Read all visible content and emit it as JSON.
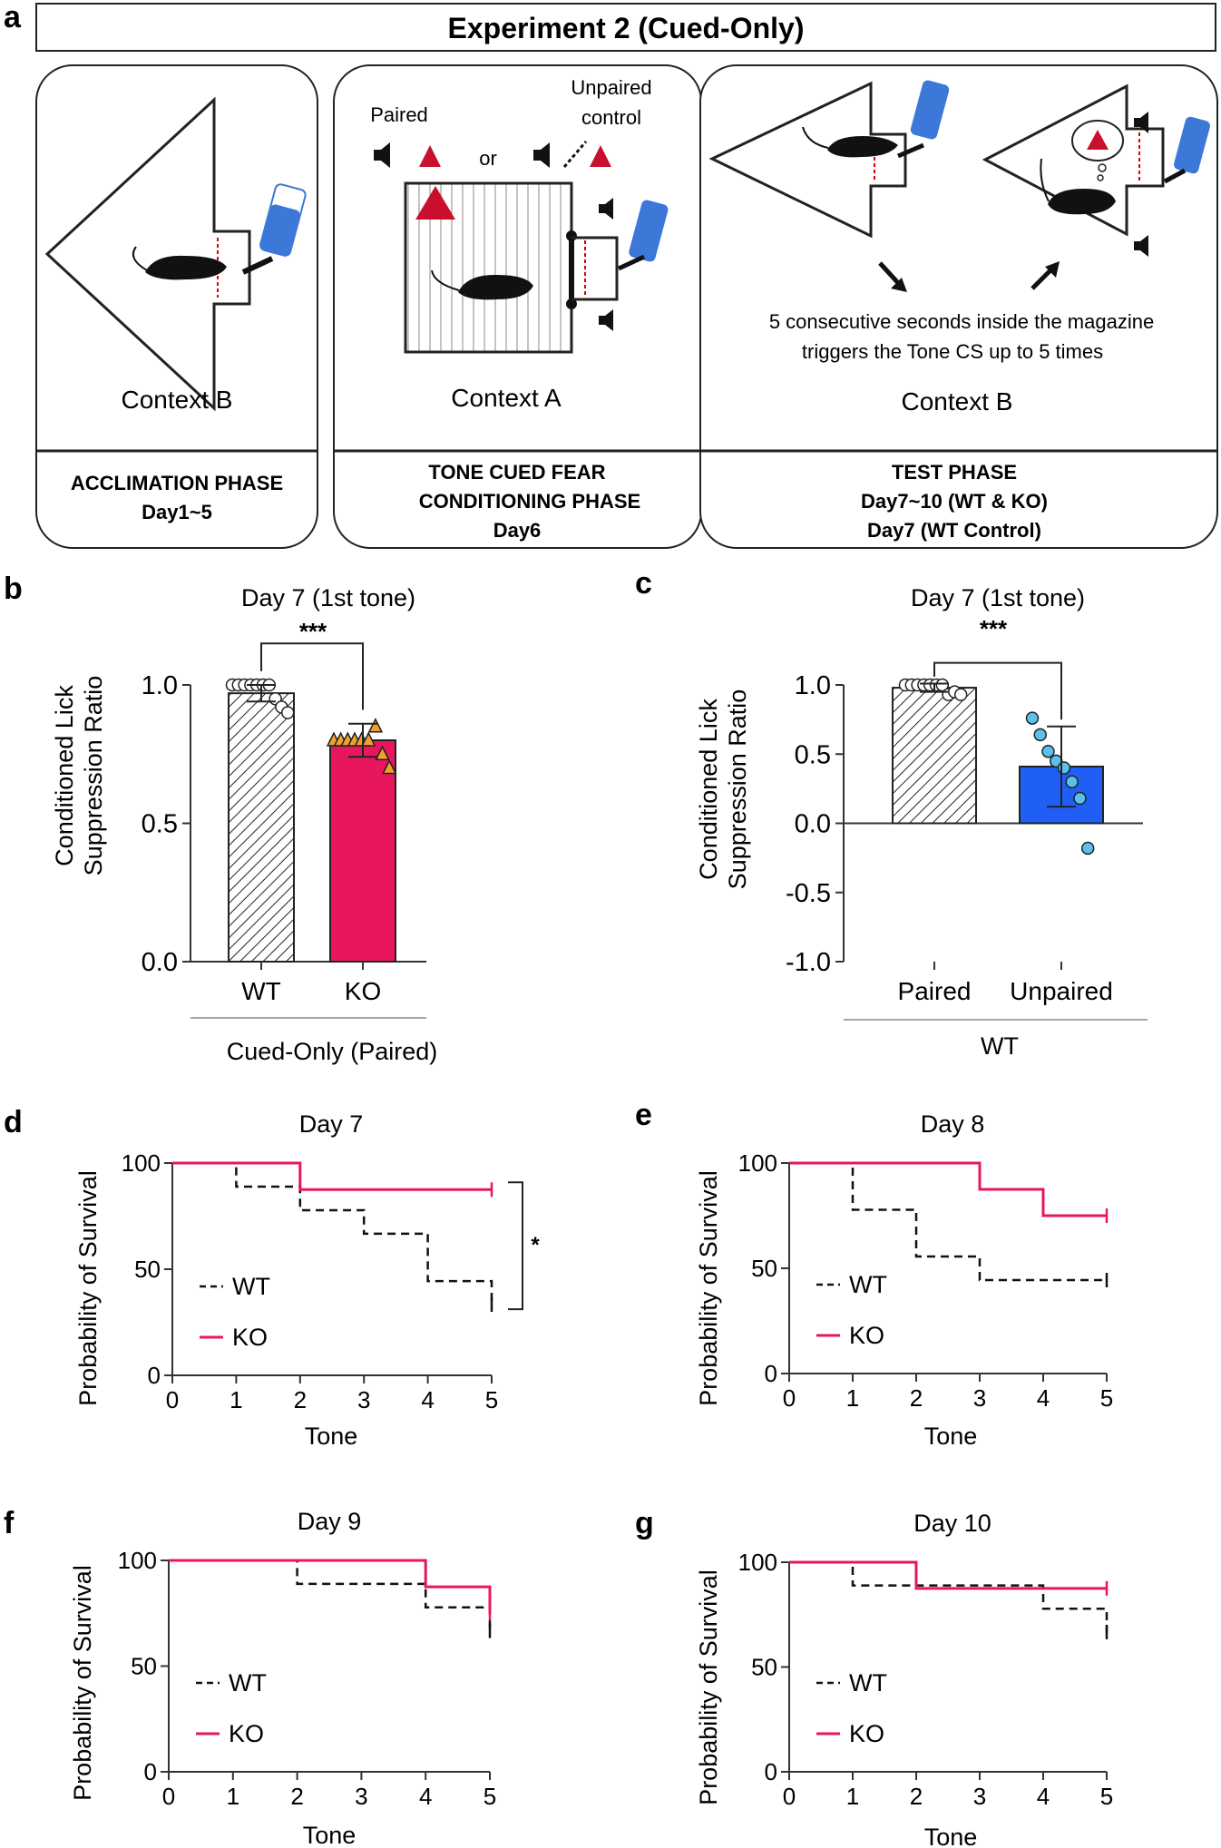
{
  "panel_letters": {
    "a": "a",
    "b": "b",
    "c": "c",
    "d": "d",
    "e": "e",
    "f": "f",
    "g": "g"
  },
  "colors": {
    "wt": "#111111",
    "ko": "#e8175d",
    "unpaired": "#1f5ff5",
    "unpaired_dot": "#5bc0eb",
    "triangle": "#f0a030",
    "shock": "#c8102e",
    "water": "#3b78d8"
  },
  "schematic": {
    "title": "Experiment 2 (Cued-Only)",
    "box1": {
      "context": "Context B",
      "phase_line1": "ACCLIMATION PHASE",
      "phase_line2": "Day1~5"
    },
    "box2": {
      "paired": "Paired",
      "unpaired_line1": "Unpaired",
      "unpaired_line2": "control",
      "or": "or",
      "context": "Context A",
      "phase_line1": "TONE CUED FEAR",
      "phase_line2": "CONDITIONING PHASE",
      "phase_line3": "Day6"
    },
    "box3": {
      "note_line1": "5 consecutive seconds inside the magazine",
      "note_line2": "triggers the Tone CS up to 5 times",
      "context": "Context B",
      "phase_line1": "TEST PHASE",
      "phase_line2": "Day7~10 (WT & KO)",
      "phase_line3": "Day7 (WT Control)"
    }
  },
  "chart_data": [
    {
      "id": "b",
      "type": "bar",
      "title": "Day 7 (1st tone)",
      "ylabel_line1": "Conditioned Lick",
      "ylabel_line2": "Suppression Ratio",
      "group_label": "Cued-Only (Paired)",
      "significance": "***",
      "ylim": [
        0.0,
        1.0
      ],
      "yticks": [
        "0.0",
        "0.5",
        "1.0"
      ],
      "categories": [
        "WT",
        "KO"
      ],
      "values": [
        0.97,
        0.8
      ],
      "error": [
        0.03,
        0.06
      ],
      "points": [
        [
          1.0,
          1.0,
          1.0,
          1.0,
          1.0,
          1.0,
          1.0,
          0.95,
          0.92,
          0.9
        ],
        [
          0.8,
          0.8,
          0.8,
          0.8,
          0.8,
          0.8,
          0.85,
          0.75,
          0.7
        ]
      ]
    },
    {
      "id": "c",
      "type": "bar",
      "title": "Day 7 (1st tone)",
      "ylabel_line1": "Conditioned Lick",
      "ylabel_line2": "Suppression Ratio",
      "group_label": "WT",
      "significance": "***",
      "ylim": [
        -1.0,
        1.0
      ],
      "yticks": [
        "-1.0",
        "-0.5",
        "0.0",
        "0.5",
        "1.0"
      ],
      "categories": [
        "Paired",
        "Unpaired"
      ],
      "values": [
        0.98,
        0.41
      ],
      "error": [
        0.03,
        0.29
      ],
      "points": [
        [
          1.0,
          1.0,
          1.0,
          1.0,
          1.0,
          1.0,
          1.0,
          0.93,
          0.95,
          0.93
        ],
        [
          0.76,
          0.64,
          0.52,
          0.45,
          0.4,
          0.3,
          0.18,
          -0.18
        ]
      ]
    },
    {
      "id": "d",
      "type": "line",
      "title": "Day 7",
      "xlabel": "Tone",
      "ylabel": "Probability of Survival",
      "xlim": [
        0,
        5
      ],
      "ylim": [
        0,
        100
      ],
      "xticks": [
        "0",
        "1",
        "2",
        "3",
        "4",
        "5"
      ],
      "yticks": [
        "0",
        "50",
        "100"
      ],
      "series": [
        {
          "name": "WT",
          "steps": [
            [
              0,
              100
            ],
            [
              1,
              88.9
            ],
            [
              2,
              77.8
            ],
            [
              3,
              66.7
            ],
            [
              4,
              44.4
            ],
            [
              5,
              33.3
            ]
          ]
        },
        {
          "name": "KO",
          "steps": [
            [
              0,
              100
            ],
            [
              1,
              100
            ],
            [
              2,
              87.5
            ],
            [
              3,
              87.5
            ],
            [
              4,
              87.5
            ],
            [
              5,
              87.5
            ]
          ]
        }
      ],
      "significance": "*"
    },
    {
      "id": "e",
      "type": "line",
      "title": "Day 8",
      "xlabel": "Tone",
      "ylabel": "Probability of Survival",
      "xlim": [
        0,
        5
      ],
      "ylim": [
        0,
        100
      ],
      "xticks": [
        "0",
        "1",
        "2",
        "3",
        "4",
        "5"
      ],
      "yticks": [
        "0",
        "50",
        "100"
      ],
      "series": [
        {
          "name": "WT",
          "steps": [
            [
              0,
              100
            ],
            [
              1,
              77.8
            ],
            [
              2,
              55.6
            ],
            [
              3,
              44.4
            ],
            [
              4,
              44.4
            ],
            [
              5,
              44.4
            ]
          ]
        },
        {
          "name": "KO",
          "steps": [
            [
              0,
              100
            ],
            [
              1,
              100
            ],
            [
              2,
              100
            ],
            [
              3,
              87.5
            ],
            [
              4,
              75
            ],
            [
              5,
              75
            ]
          ]
        }
      ],
      "significance": ""
    },
    {
      "id": "f",
      "type": "line",
      "title": "Day 9",
      "xlabel": "Tone",
      "ylabel": "Probability of Survival",
      "xlim": [
        0,
        5
      ],
      "ylim": [
        0,
        100
      ],
      "xticks": [
        "0",
        "1",
        "2",
        "3",
        "4",
        "5"
      ],
      "yticks": [
        "0",
        "50",
        "100"
      ],
      "series": [
        {
          "name": "WT",
          "steps": [
            [
              0,
              100
            ],
            [
              1,
              100
            ],
            [
              2,
              88.9
            ],
            [
              3,
              88.9
            ],
            [
              4,
              77.8
            ],
            [
              5,
              66.7
            ]
          ]
        },
        {
          "name": "KO",
          "steps": [
            [
              0,
              100
            ],
            [
              1,
              100
            ],
            [
              2,
              100
            ],
            [
              3,
              100
            ],
            [
              4,
              87.5
            ],
            [
              5,
              75
            ]
          ]
        }
      ],
      "significance": ""
    },
    {
      "id": "g",
      "type": "line",
      "title": "Day 10",
      "xlabel": "Tone",
      "ylabel": "Probability of Survival",
      "xlim": [
        0,
        5
      ],
      "ylim": [
        0,
        100
      ],
      "xticks": [
        "0",
        "1",
        "2",
        "3",
        "4",
        "5"
      ],
      "yticks": [
        "0",
        "50",
        "100"
      ],
      "series": [
        {
          "name": "WT",
          "steps": [
            [
              0,
              100
            ],
            [
              1,
              88.9
            ],
            [
              2,
              88.9
            ],
            [
              3,
              88.9
            ],
            [
              4,
              77.8
            ],
            [
              5,
              66.7
            ]
          ]
        },
        {
          "name": "KO",
          "steps": [
            [
              0,
              100
            ],
            [
              1,
              100
            ],
            [
              2,
              87.5
            ],
            [
              3,
              87.5
            ],
            [
              4,
              87.5
            ],
            [
              5,
              87.5
            ]
          ]
        }
      ],
      "significance": ""
    }
  ]
}
